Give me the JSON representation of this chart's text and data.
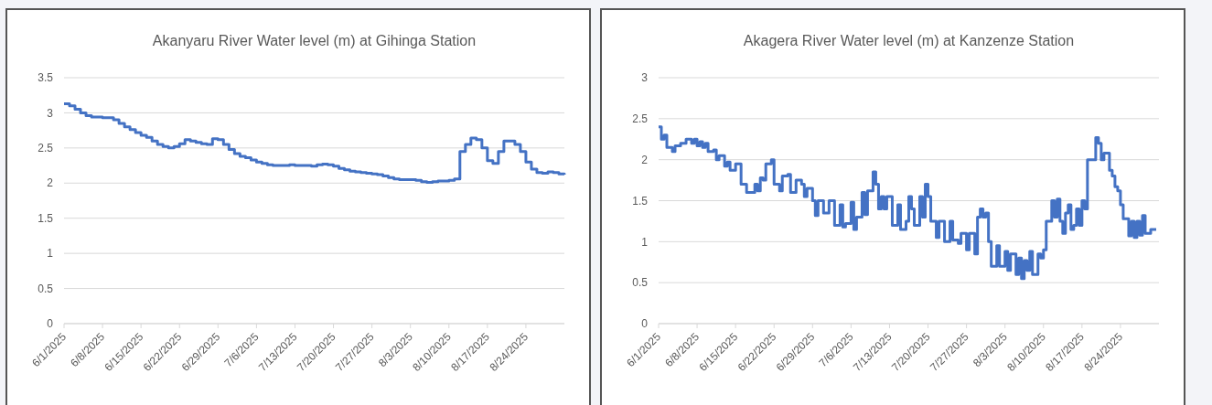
{
  "chart_data": [
    {
      "type": "step",
      "title": "Akanyaru River Water level (m) at Gihinga Station",
      "grid": "y",
      "xlim": [
        "2025-06-01",
        "2025-08-31"
      ],
      "ylim": [
        0,
        3.5
      ],
      "yticks": [
        0,
        0.5,
        1,
        1.5,
        2,
        2.5,
        3,
        3.5
      ],
      "xticks": [
        {
          "value": "2025-06-01",
          "label": "6/1/2025"
        },
        {
          "value": "2025-06-08",
          "label": "6/8/2025"
        },
        {
          "value": "2025-06-15",
          "label": "6/15/2025"
        },
        {
          "value": "2025-06-22",
          "label": "6/22/2025"
        },
        {
          "value": "2025-06-29",
          "label": "6/29/2025"
        },
        {
          "value": "2025-07-06",
          "label": "7/6/2025"
        },
        {
          "value": "2025-07-13",
          "label": "7/13/2025"
        },
        {
          "value": "2025-07-20",
          "label": "7/20/2025"
        },
        {
          "value": "2025-07-27",
          "label": "7/27/2025"
        },
        {
          "value": "2025-08-03",
          "label": "8/3/2025"
        },
        {
          "value": "2025-08-10",
          "label": "8/10/2025"
        },
        {
          "value": "2025-08-17",
          "label": "8/17/2025"
        },
        {
          "value": "2025-08-24",
          "label": "8/24/2025"
        }
      ],
      "series": [
        {
          "color": "#4472c4",
          "x": [
            "2025-06-01",
            "2025-06-02",
            "2025-06-03",
            "2025-06-04",
            "2025-06-05",
            "2025-06-06",
            "2025-06-08",
            "2025-06-09",
            "2025-06-10",
            "2025-06-11",
            "2025-06-12",
            "2025-06-13",
            "2025-06-14",
            "2025-06-15",
            "2025-06-16",
            "2025-06-17",
            "2025-06-18",
            "2025-06-19",
            "2025-06-20",
            "2025-06-21",
            "2025-06-22",
            "2025-06-23",
            "2025-06-24",
            "2025-06-25",
            "2025-06-26",
            "2025-06-27",
            "2025-06-28",
            "2025-06-29",
            "2025-06-30",
            "2025-07-01",
            "2025-07-02",
            "2025-07-03",
            "2025-07-04",
            "2025-07-05",
            "2025-07-06",
            "2025-07-07",
            "2025-07-08",
            "2025-07-09",
            "2025-07-11",
            "2025-07-12",
            "2025-07-13",
            "2025-07-15",
            "2025-07-16",
            "2025-07-17",
            "2025-07-18",
            "2025-07-19",
            "2025-07-20",
            "2025-07-21",
            "2025-07-22",
            "2025-07-23",
            "2025-07-24",
            "2025-07-25",
            "2025-07-26",
            "2025-07-27",
            "2025-07-28",
            "2025-07-29",
            "2025-07-30",
            "2025-07-31",
            "2025-08-01",
            "2025-08-03",
            "2025-08-04",
            "2025-08-05",
            "2025-08-06",
            "2025-08-07",
            "2025-08-08",
            "2025-08-09",
            "2025-08-10",
            "2025-08-11",
            "2025-08-12",
            "2025-08-13",
            "2025-08-14",
            "2025-08-15",
            "2025-08-16",
            "2025-08-17",
            "2025-08-18",
            "2025-08-19",
            "2025-08-20",
            "2025-08-21",
            "2025-08-22",
            "2025-08-23",
            "2025-08-24",
            "2025-08-25",
            "2025-08-26",
            "2025-08-27",
            "2025-08-28",
            "2025-08-29",
            "2025-08-30",
            "2025-08-31"
          ],
          "values": [
            3.13,
            3.1,
            3.05,
            3.0,
            2.96,
            2.94,
            2.93,
            2.93,
            2.9,
            2.85,
            2.8,
            2.76,
            2.72,
            2.68,
            2.65,
            2.6,
            2.55,
            2.52,
            2.5,
            2.52,
            2.56,
            2.62,
            2.6,
            2.58,
            2.56,
            2.55,
            2.63,
            2.62,
            2.55,
            2.48,
            2.42,
            2.38,
            2.36,
            2.33,
            2.3,
            2.28,
            2.26,
            2.25,
            2.25,
            2.26,
            2.25,
            2.25,
            2.24,
            2.26,
            2.27,
            2.26,
            2.24,
            2.21,
            2.19,
            2.17,
            2.16,
            2.15,
            2.14,
            2.13,
            2.12,
            2.1,
            2.08,
            2.06,
            2.05,
            2.05,
            2.04,
            2.02,
            2.01,
            2.02,
            2.03,
            2.03,
            2.04,
            2.06,
            2.45,
            2.55,
            2.64,
            2.62,
            2.5,
            2.32,
            2.28,
            2.45,
            2.6,
            2.6,
            2.55,
            2.45,
            2.3,
            2.2,
            2.15,
            2.14,
            2.16,
            2.15,
            2.13,
            2.12
          ]
        }
      ]
    },
    {
      "type": "step",
      "title": "Akagera River Water level (m) at Kanzenze Station",
      "grid": "y",
      "xlim": [
        "2025-06-01",
        "2025-08-31"
      ],
      "ylim": [
        0,
        3
      ],
      "yticks": [
        0,
        0.5,
        1,
        1.5,
        2,
        2.5,
        3
      ],
      "xticks": [
        {
          "value": "2025-06-01",
          "label": "6/1/2025"
        },
        {
          "value": "2025-06-08",
          "label": "6/8/2025"
        },
        {
          "value": "2025-06-15",
          "label": "6/15/2025"
        },
        {
          "value": "2025-06-22",
          "label": "6/22/2025"
        },
        {
          "value": "2025-06-29",
          "label": "6/29/2025"
        },
        {
          "value": "2025-07-06",
          "label": "7/6/2025"
        },
        {
          "value": "2025-07-13",
          "label": "7/13/2025"
        },
        {
          "value": "2025-07-20",
          "label": "7/20/2025"
        },
        {
          "value": "2025-07-27",
          "label": "7/27/2025"
        },
        {
          "value": "2025-08-03",
          "label": "8/3/2025"
        },
        {
          "value": "2025-08-10",
          "label": "8/10/2025"
        },
        {
          "value": "2025-08-17",
          "label": "8/17/2025"
        },
        {
          "value": "2025-08-24",
          "label": "8/24/2025"
        }
      ],
      "series": [
        {
          "color": "#4472c4",
          "x": [
            "2025-06-01T00:00",
            "2025-06-01T12:00",
            "2025-06-02T00:00",
            "2025-06-02T12:00",
            "2025-06-03T12:00",
            "2025-06-04T00:00",
            "2025-06-05T00:00",
            "2025-06-06T00:00",
            "2025-06-07T00:00",
            "2025-06-07T12:00",
            "2025-06-08T00:00",
            "2025-06-08T12:00",
            "2025-06-09T00:00",
            "2025-06-09T12:00",
            "2025-06-10T00:00",
            "2025-06-11T00:00",
            "2025-06-11T12:00",
            "2025-06-12T00:00",
            "2025-06-13T00:00",
            "2025-06-13T12:00",
            "2025-06-14T00:00",
            "2025-06-15T00:00",
            "2025-06-16T00:00",
            "2025-06-17T00:00",
            "2025-06-18T12:00",
            "2025-06-19T00:00",
            "2025-06-19T12:00",
            "2025-06-20T00:00",
            "2025-06-20T12:00",
            "2025-06-21T12:00",
            "2025-06-22T00:00",
            "2025-06-23T00:00",
            "2025-06-23T12:00",
            "2025-06-24T12:00",
            "2025-06-25T00:00",
            "2025-06-26T00:00",
            "2025-06-27T00:00",
            "2025-06-27T12:00",
            "2025-06-28T00:00",
            "2025-06-29T00:00",
            "2025-06-29T12:00",
            "2025-06-30T00:00",
            "2025-07-01T00:00",
            "2025-07-02T00:00",
            "2025-07-03T00:00",
            "2025-07-04T00:00",
            "2025-07-04T12:00",
            "2025-07-05T00:00",
            "2025-07-06T00:00",
            "2025-07-06T12:00",
            "2025-07-07T00:00",
            "2025-07-08T00:00",
            "2025-07-08T12:00",
            "2025-07-09T00:00",
            "2025-07-10T00:00",
            "2025-07-10T12:00",
            "2025-07-11T00:00",
            "2025-07-11T12:00",
            "2025-07-12T00:00",
            "2025-07-12T12:00",
            "2025-07-13T12:00",
            "2025-07-14T12:00",
            "2025-07-15T00:00",
            "2025-07-16T00:00",
            "2025-07-16T12:00",
            "2025-07-17T00:00",
            "2025-07-17T12:00",
            "2025-07-18T12:00",
            "2025-07-19T00:00",
            "2025-07-19T12:00",
            "2025-07-20T00:00",
            "2025-07-20T12:00",
            "2025-07-21T12:00",
            "2025-07-22T00:00",
            "2025-07-23T00:00",
            "2025-07-24T00:00",
            "2025-07-24T12:00",
            "2025-07-25T12:00",
            "2025-07-26T00:00",
            "2025-07-27T00:00",
            "2025-07-27T12:00",
            "2025-07-28T12:00",
            "2025-07-29T00:00",
            "2025-07-29T12:00",
            "2025-07-30T00:00",
            "2025-07-30T12:00",
            "2025-07-31T00:00",
            "2025-07-31T12:00",
            "2025-08-01T12:00",
            "2025-08-02T00:00",
            "2025-08-03T00:00",
            "2025-08-03T12:00",
            "2025-08-04T00:00",
            "2025-08-05T00:00",
            "2025-08-05T12:00",
            "2025-08-06T00:00",
            "2025-08-06T12:00",
            "2025-08-07T00:00",
            "2025-08-07T12:00",
            "2025-08-08T00:00",
            "2025-08-09T00:00",
            "2025-08-09T12:00",
            "2025-08-10T00:00",
            "2025-08-10T12:00",
            "2025-08-11T12:00",
            "2025-08-12T00:00",
            "2025-08-12T12:00",
            "2025-08-13T00:00",
            "2025-08-13T12:00",
            "2025-08-14T00:00",
            "2025-08-14T12:00",
            "2025-08-15T00:00",
            "2025-08-15T12:00",
            "2025-08-16T00:00",
            "2025-08-16T12:00",
            "2025-08-17T00:00",
            "2025-08-17T12:00",
            "2025-08-18T00:00",
            "2025-08-19T12:00",
            "2025-08-20T00:00",
            "2025-08-20T12:00",
            "2025-08-21T00:00",
            "2025-08-22T00:00",
            "2025-08-22T12:00",
            "2025-08-23T00:00",
            "2025-08-23T12:00",
            "2025-08-24T00:00",
            "2025-08-24T12:00",
            "2025-08-25T12:00",
            "2025-08-26T00:00",
            "2025-08-26T12:00",
            "2025-08-27T00:00",
            "2025-08-27T12:00",
            "2025-08-28T00:00",
            "2025-08-28T12:00",
            "2025-08-29T12:00",
            "2025-08-30T12:00"
          ],
          "values": [
            2.4,
            2.25,
            2.3,
            2.15,
            2.1,
            2.17,
            2.2,
            2.25,
            2.2,
            2.25,
            2.17,
            2.22,
            2.15,
            2.2,
            2.1,
            2.12,
            2.0,
            2.05,
            1.92,
            1.97,
            1.87,
            1.95,
            1.7,
            1.6,
            1.7,
            1.62,
            1.78,
            1.75,
            1.95,
            2.0,
            1.7,
            1.62,
            1.8,
            1.82,
            1.6,
            1.75,
            1.7,
            1.55,
            1.65,
            1.5,
            1.32,
            1.5,
            1.35,
            1.5,
            1.2,
            1.45,
            1.18,
            1.22,
            1.48,
            1.15,
            1.3,
            1.6,
            1.33,
            1.62,
            1.85,
            1.7,
            1.4,
            1.55,
            1.4,
            1.55,
            1.2,
            1.45,
            1.15,
            1.25,
            1.55,
            1.4,
            1.2,
            1.55,
            1.3,
            1.7,
            1.55,
            1.25,
            1.05,
            1.25,
            1.0,
            1.25,
            1.02,
            0.98,
            1.1,
            0.9,
            1.1,
            0.85,
            1.3,
            1.4,
            1.3,
            1.35,
            1.0,
            0.7,
            0.95,
            0.7,
            0.88,
            0.65,
            0.85,
            0.6,
            0.8,
            0.55,
            0.77,
            0.65,
            0.88,
            0.6,
            0.85,
            0.8,
            0.9,
            1.25,
            1.5,
            1.3,
            1.52,
            1.25,
            1.1,
            1.35,
            1.45,
            1.15,
            1.2,
            1.4,
            1.2,
            1.5,
            1.4,
            2.0,
            2.27,
            2.2,
            2.0,
            2.08,
            1.87,
            1.8,
            1.67,
            1.62,
            1.45,
            1.28,
            1.07,
            1.25,
            1.05,
            1.25,
            1.08,
            1.32,
            1.1,
            1.15,
            1.15
          ]
        }
      ]
    }
  ]
}
